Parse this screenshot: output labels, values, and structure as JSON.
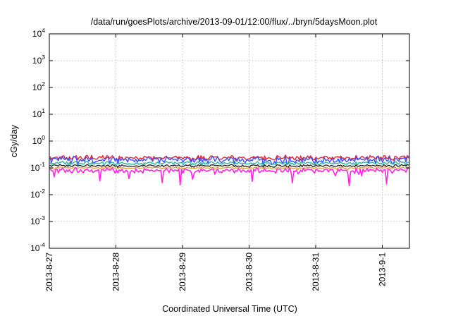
{
  "chart_data": {
    "type": "line",
    "title": "/data/run/goesPlots/archive/2013-09-01/12:00/flux/../bryn/5daysMoon.plot",
    "xlabel": "Coordinated Universal Time (UTC)",
    "ylabel": "cGy/day",
    "yscale": "log",
    "ylim": [
      0.0001,
      10000
    ],
    "xlim": [
      "2013-08-27 00:00",
      "2013-09-01 12:00"
    ],
    "grid": true,
    "x_ticks": [
      "2013-8-27",
      "2013-8-28",
      "2013-8-29",
      "2013-8-30",
      "2013-8-31",
      "2013-9-1"
    ],
    "y_ticks": [
      {
        "base": "10",
        "exp": "-4"
      },
      {
        "base": "10",
        "exp": "-3"
      },
      {
        "base": "10",
        "exp": "-2"
      },
      {
        "base": "10",
        "exp": "-1"
      },
      {
        "base": "10",
        "exp": "0"
      },
      {
        "base": "10",
        "exp": "1"
      },
      {
        "base": "10",
        "exp": "2"
      },
      {
        "base": "10",
        "exp": "3"
      },
      {
        "base": "10",
        "exp": "4"
      }
    ],
    "series": [
      {
        "color": "#e8222a",
        "level": 0.24,
        "noise": 0.2,
        "dip": 0.15,
        "width": 1.4
      },
      {
        "color": "#3b4cff",
        "level": 0.2,
        "noise": 0.28,
        "dip": 0.25,
        "width": 1.4
      },
      {
        "color": "#2ab5a0",
        "level": 0.15,
        "noise": 0.15,
        "dip": 0.15,
        "width": 1.4
      },
      {
        "color": "#1c1c1c",
        "level": 0.12,
        "noise": 0.1,
        "dip": 0.1,
        "width": 1.3
      },
      {
        "color": "#f0a030",
        "level": 0.1,
        "noise": 0.08,
        "dip": 0.15,
        "width": 1.3
      },
      {
        "color": "#ff22e6",
        "level": 0.08,
        "noise": 0.2,
        "dip": 0.55,
        "width": 1.6
      }
    ]
  }
}
